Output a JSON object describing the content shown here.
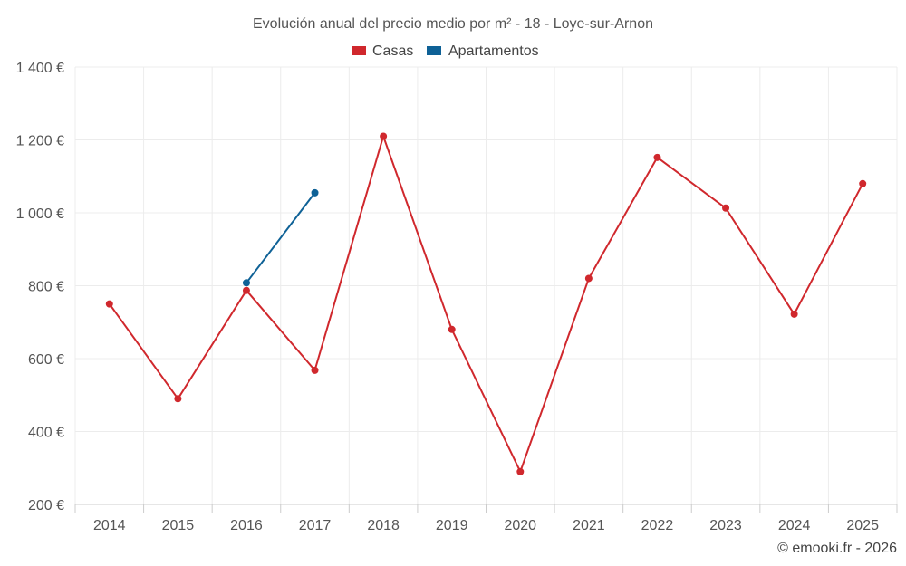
{
  "chart_data": {
    "type": "line",
    "title": "Evolución anual del precio medio por m² - 18 - Loye-sur-Arnon",
    "x": [
      "2014",
      "2015",
      "2016",
      "2017",
      "2018",
      "2019",
      "2020",
      "2021",
      "2022",
      "2023",
      "2024",
      "2025"
    ],
    "ylim": [
      200,
      1400
    ],
    "yticks": [
      200,
      400,
      600,
      800,
      1000,
      1200,
      1400
    ],
    "ytick_labels": [
      "200 €",
      "400 €",
      "600 €",
      "800 €",
      "1 000 €",
      "1 200 €",
      "1 400 €"
    ],
    "grid": true,
    "legend_position": "top-center",
    "series": [
      {
        "name": "Casas",
        "color": "#d0282d",
        "values": [
          750,
          490,
          787,
          568,
          1210,
          680,
          290,
          820,
          1152,
          1013,
          722,
          1080
        ]
      },
      {
        "name": "Apartamentos",
        "color": "#0e6196",
        "values": [
          null,
          null,
          808,
          1055,
          null,
          null,
          null,
          null,
          null,
          null,
          null,
          null
        ]
      }
    ],
    "credit": "© emooki.fr - 2026"
  }
}
